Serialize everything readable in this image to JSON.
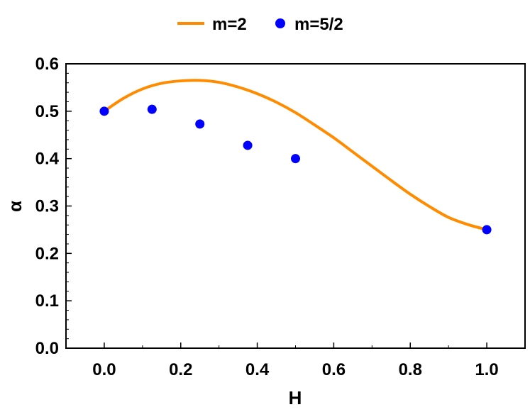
{
  "chart_data": {
    "type": "line",
    "xlabel": "H",
    "ylabel": "α",
    "xlim": [
      -0.1,
      1.1
    ],
    "ylim": [
      0.0,
      0.6
    ],
    "xticks": [
      "0.0",
      "0.2",
      "0.4",
      "0.6",
      "0.8",
      "1.0"
    ],
    "xtick_values": [
      0.0,
      0.2,
      0.4,
      0.6,
      0.8,
      1.0
    ],
    "yticks": [
      "0.0",
      "0.1",
      "0.2",
      "0.3",
      "0.4",
      "0.5",
      "0.6"
    ],
    "ytick_values": [
      0.0,
      0.1,
      0.2,
      0.3,
      0.4,
      0.5,
      0.6
    ],
    "grid": false,
    "legend_position": "top-center",
    "series": [
      {
        "name": "m=2",
        "style": "line",
        "color": "#ff8c00",
        "x": [
          0.0,
          0.05,
          0.1,
          0.15,
          0.2,
          0.25,
          0.3,
          0.35,
          0.4,
          0.45,
          0.5,
          0.55,
          0.6,
          0.65,
          0.7,
          0.75,
          0.8,
          0.85,
          0.9,
          0.95,
          1.0
        ],
        "y": [
          0.5,
          0.527,
          0.547,
          0.559,
          0.564,
          0.565,
          0.561,
          0.551,
          0.537,
          0.519,
          0.497,
          0.471,
          0.444,
          0.414,
          0.384,
          0.354,
          0.325,
          0.299,
          0.276,
          0.261,
          0.25
        ]
      },
      {
        "name": "m=5/2",
        "style": "scatter",
        "color": "#0000ff",
        "x": [
          0.0,
          0.125,
          0.25,
          0.375,
          0.5,
          1.0
        ],
        "y": [
          0.5,
          0.504,
          0.473,
          0.428,
          0.4,
          0.25
        ]
      }
    ]
  }
}
